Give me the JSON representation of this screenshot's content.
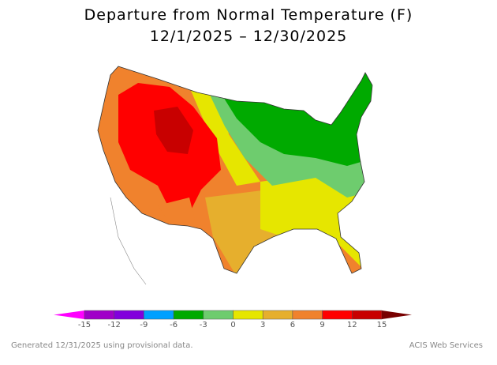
{
  "title": "Departure from Normal Temperature (F)",
  "subtitle": "12/1/2025 – 12/30/2025",
  "legend": {
    "ticks": [
      "-15",
      "-12",
      "-9",
      "-6",
      "-3",
      "0",
      "3",
      "6",
      "9",
      "12",
      "15"
    ],
    "colors": [
      "#ff00ff",
      "#a000c8",
      "#8200dc",
      "#00a0ff",
      "#00aa00",
      "#6ecc6e",
      "#e6e600",
      "#e6af2d",
      "#f0822d",
      "#ff0000",
      "#c80000",
      "#780000"
    ]
  },
  "footer": {
    "left": "Generated 12/31/2025 using provisional data.",
    "right": "ACIS Web Services"
  }
}
